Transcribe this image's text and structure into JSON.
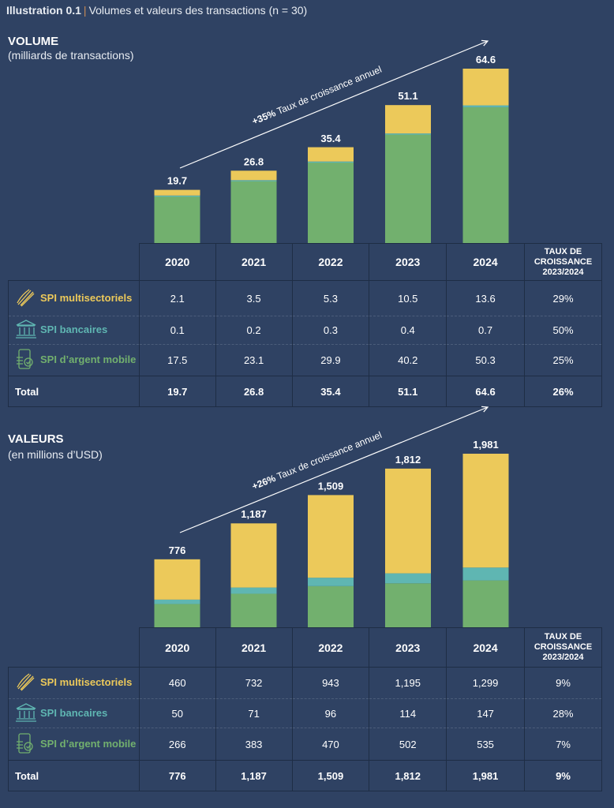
{
  "title": {
    "label": "Illustration 0.1",
    "separator": "|",
    "text": "Volumes et valeurs des transactions (n = 30)"
  },
  "colors": {
    "background": "#2f4263",
    "multisectoriels": "#ecc95a",
    "bancaires": "#5fb6b2",
    "mobile": "#72b06e"
  },
  "chart_data": [
    {
      "type": "bar",
      "stacked": true,
      "title": "VOLUME",
      "subtitle": "(milliards de transactions)",
      "categories": [
        "2020",
        "2021",
        "2022",
        "2023",
        "2024"
      ],
      "series": [
        {
          "name": "SPI d'argent mobile",
          "values": [
            17.5,
            23.1,
            29.9,
            40.2,
            50.3
          ],
          "color": "#72b06e"
        },
        {
          "name": "SPI bancaires",
          "values": [
            0.1,
            0.2,
            0.3,
            0.4,
            0.7
          ],
          "color": "#5fb6b2"
        },
        {
          "name": "SPI multisectoriels",
          "values": [
            2.1,
            3.5,
            5.3,
            10.5,
            13.6
          ],
          "color": "#ecc95a"
        }
      ],
      "totals": [
        "19.7",
        "26.8",
        "35.4",
        "51.1",
        "64.6"
      ],
      "total_values": [
        19.7,
        26.8,
        35.4,
        51.1,
        64.6
      ],
      "ylim": [
        0,
        64.6
      ],
      "annotation": {
        "bold": "+35%",
        "text": " Taux de croissance annuel"
      },
      "table": {
        "growth_header": [
          "TAUX DE",
          "CROISSANCE",
          "2023/2024"
        ],
        "rows": [
          {
            "label": "SPI multisectoriels",
            "icon": "handshake-icon",
            "cells": [
              "2.1",
              "3.5",
              "5.3",
              "10.5",
              "13.6"
            ],
            "growth": "29%"
          },
          {
            "label": "SPI bancaires",
            "icon": "bank-icon",
            "cells": [
              "0.1",
              "0.2",
              "0.3",
              "0.4",
              "0.7"
            ],
            "growth": "50%"
          },
          {
            "label": "SPI d’argent mobile",
            "icon": "mobile-payment-icon",
            "cells": [
              "17.5",
              "23.1",
              "29.9",
              "40.2",
              "50.3"
            ],
            "growth": "25%"
          },
          {
            "label": "Total",
            "cells": [
              "19.7",
              "26.8",
              "35.4",
              "51.1",
              "64.6"
            ],
            "growth": "26%"
          }
        ]
      }
    },
    {
      "type": "bar",
      "stacked": true,
      "title": "VALEURS",
      "subtitle": "(en millions d’USD)",
      "categories": [
        "2020",
        "2021",
        "2022",
        "2023",
        "2024"
      ],
      "series": [
        {
          "name": "SPI d'argent mobile",
          "values": [
            266,
            383,
            470,
            502,
            535
          ],
          "color": "#72b06e"
        },
        {
          "name": "SPI bancaires",
          "values": [
            50,
            71,
            96,
            114,
            147
          ],
          "color": "#5fb6b2"
        },
        {
          "name": "SPI multisectoriels",
          "values": [
            460,
            732,
            943,
            1195,
            1299
          ],
          "color": "#ecc95a"
        }
      ],
      "totals": [
        "776",
        "1,187",
        "1,509",
        "1,812",
        "1,981"
      ],
      "total_values": [
        776,
        1187,
        1509,
        1812,
        1981
      ],
      "ylim": [
        0,
        1981
      ],
      "annotation": {
        "bold": "+26%",
        "text": " Taux de croissance annuel"
      },
      "table": {
        "growth_header": [
          "TAUX DE",
          "CROISSANCE",
          "2023/2024"
        ],
        "rows": [
          {
            "label": "SPI multisectoriels",
            "icon": "handshake-icon",
            "cells": [
              "460",
              "732",
              "943",
              "1,195",
              "1,299"
            ],
            "growth": "9%"
          },
          {
            "label": "SPI bancaires",
            "icon": "bank-icon",
            "cells": [
              "50",
              "71",
              "96",
              "114",
              "147"
            ],
            "growth": "28%"
          },
          {
            "label": "SPI d’argent mobile",
            "icon": "mobile-payment-icon",
            "cells": [
              "266",
              "383",
              "470",
              "502",
              "535"
            ],
            "growth": "7%"
          },
          {
            "label": "Total",
            "cells": [
              "776",
              "1,187",
              "1,509",
              "1,812",
              "1,981"
            ],
            "growth": "9%"
          }
        ]
      }
    }
  ]
}
